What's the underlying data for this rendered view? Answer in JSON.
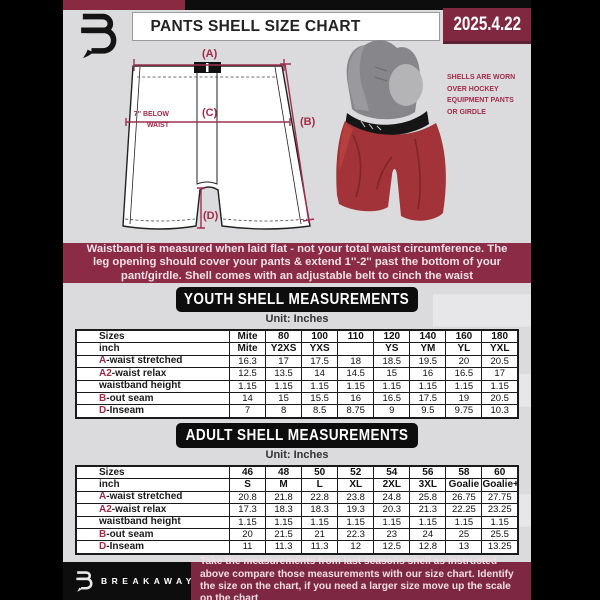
{
  "colors": {
    "maroon_banner": "#8c2b45",
    "maroon_dark": "#7f2840",
    "maroon_label": "#a12c4a",
    "page_bg": "#dbdbdd",
    "panel_black": "#0d0d0d",
    "shell_red": "#a23338",
    "banner_text": "#f2e1e7"
  },
  "header": {
    "title": "PANTS SHELL SIZE CHART",
    "date": "2025.4.22"
  },
  "diagram": {
    "label_a": "(A)",
    "label_b": "(B)",
    "label_c": "(C)",
    "label_d": "(D)",
    "waist_note_line1": "7'' BELOW",
    "waist_note_line2": "WAIST",
    "photo_note": "SHELLS ARE WORN OVER HOCKEY EQUIPMENT PANTS OR GIRDLE"
  },
  "info_banner": "Waistband is measured when laid flat - not your total waist circumference. The leg opening should cover your pants & extend 1''-2'' past the bottom of your pant/girdle. Shell comes with an adjustable belt to cinch the waist",
  "youth": {
    "title": "YOUTH SHELL MEASUREMENTS",
    "unit": "Unit: Inches",
    "rows": [
      {
        "header": true,
        "label": "Sizes",
        "values": [
          "Mite",
          "80",
          "100",
          "110",
          "120",
          "140",
          "160",
          "180"
        ]
      },
      {
        "header": true,
        "label": "inch",
        "values": [
          "Mite",
          "Y2XS",
          "YXS",
          "",
          "YS",
          "YM",
          "YL",
          "YXL"
        ]
      },
      {
        "prefix": "A",
        "label": "-waist stretched",
        "values": [
          "16.3",
          "17",
          "17.5",
          "18",
          "18.5",
          "19.5",
          "20",
          "20.5"
        ]
      },
      {
        "prefix": "A2",
        "label": "-waist relax",
        "values": [
          "12.5",
          "13.5",
          "14",
          "14.5",
          "15",
          "16",
          "16.5",
          "17"
        ]
      },
      {
        "label": "waistband height",
        "values": [
          "1.15",
          "1.15",
          "1.15",
          "1.15",
          "1.15",
          "1.15",
          "1.15",
          "1.15"
        ]
      },
      {
        "prefix": "B",
        "label": "-out seam",
        "values": [
          "14",
          "15",
          "15.5",
          "16",
          "16.5",
          "17.5",
          "19",
          "20.5"
        ]
      },
      {
        "prefix": "D",
        "label": "-Inseam",
        "values": [
          "7",
          "8",
          "8.5",
          "8.75",
          "9",
          "9.5",
          "9.75",
          "10.3"
        ]
      }
    ]
  },
  "adult": {
    "title": "ADULT SHELL MEASUREMENTS",
    "unit": "Unit: Inches",
    "rows": [
      {
        "header": true,
        "label": "Sizes",
        "values": [
          "46",
          "48",
          "50",
          "52",
          "54",
          "56",
          "58",
          "60"
        ]
      },
      {
        "header": true,
        "label": "inch",
        "values": [
          "S",
          "M",
          "L",
          "XL",
          "2XL",
          "3XL",
          "Goalie",
          "Goalie+"
        ]
      },
      {
        "prefix": "A",
        "label": "-waist stretched",
        "values": [
          "20.8",
          "21.8",
          "22.8",
          "23.8",
          "24.8",
          "25.8",
          "26.75",
          "27.75"
        ]
      },
      {
        "prefix": "A2",
        "label": "-waist relax",
        "values": [
          "17.3",
          "18.3",
          "18.3",
          "19.3",
          "20.3",
          "21.3",
          "22.25",
          "23.25"
        ]
      },
      {
        "label": "waistband height",
        "values": [
          "1.15",
          "1.15",
          "1.15",
          "1.15",
          "1.15",
          "1.15",
          "1.15",
          "1.15"
        ]
      },
      {
        "prefix": "B",
        "label": "-out seam",
        "values": [
          "20",
          "21.5",
          "21",
          "22.3",
          "23",
          "24",
          "25",
          "25.5"
        ]
      },
      {
        "prefix": "D",
        "label": "-Inseam",
        "values": [
          "11",
          "11.3",
          "11.3",
          "12",
          "12.5",
          "12.8",
          "13",
          "13.25"
        ]
      }
    ]
  },
  "footer": {
    "brand": "BREAKAWAY",
    "note": "Take the measurements from last seasons shell as instructed above compare those measurements  with our size chart. Identify the size on the chart, if you need a larger size move up the scale on the chart"
  }
}
